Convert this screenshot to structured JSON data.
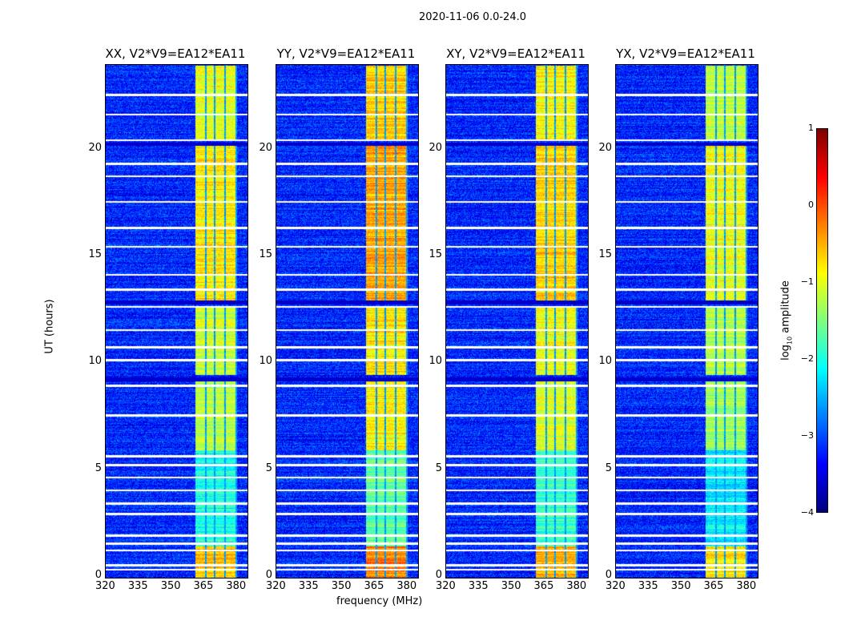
{
  "suptitle": "2020-11-06 0.0-24.0",
  "chart_data": {
    "type": "heatmap",
    "title": "2020-11-06 0.0-24.0",
    "xlabel": "frequency (MHz)",
    "ylabel": "UT (hours)",
    "xlim": [
      320,
      385
    ],
    "ylim": [
      0,
      24
    ],
    "xticks": [
      "320",
      "335",
      "350",
      "365",
      "380"
    ],
    "xtick_values": [
      320,
      335,
      350,
      365,
      380
    ],
    "yticks": [
      "0",
      "5",
      "10",
      "15",
      "20"
    ],
    "ytick_values": [
      0,
      5,
      10,
      15,
      20
    ],
    "colormap": "jet",
    "colorbar": {
      "label_main": "log",
      "label_sub": "10",
      "label_rest": " amplitude",
      "range": [
        -4,
        1
      ],
      "ticks": [
        "1",
        "0",
        "−1",
        "−2",
        "−3",
        "−4"
      ],
      "tick_values": [
        1,
        0,
        -1,
        -2,
        -3,
        -4
      ]
    },
    "background_log_amplitude": -3.2,
    "bright_band_channels_mhz": [
      [
        361,
        365.3
      ],
      [
        366,
        369.3
      ],
      [
        370,
        374.3
      ],
      [
        375,
        379.3
      ]
    ],
    "band_level_by_time": [
      {
        "t": [
          0,
          1.5
        ],
        "level": -0.6
      },
      {
        "t": [
          1.5,
          6.0
        ],
        "level": -2.0
      },
      {
        "t": [
          6.0,
          9.2
        ],
        "level": -1.2
      },
      {
        "t": [
          9.5,
          12.7
        ],
        "level": -1.1
      },
      {
        "t": [
          13.0,
          20.3
        ],
        "level": -0.8
      },
      {
        "t": [
          20.5,
          24.0
        ],
        "level": -1.0
      }
    ],
    "flagged_times_hours": [
      0.4,
      0.6,
      1.3,
      1.6,
      2.0,
      3.0,
      3.5,
      4.1,
      4.7,
      5.3,
      5.7,
      7.6,
      9.0,
      10.2,
      10.8,
      11.6,
      12.7,
      13.5,
      14.2,
      15.5,
      16.4,
      17.6,
      18.8,
      19.4,
      20.5,
      21.7,
      22.6
    ],
    "dark_times_hours": [
      9.3,
      12.9,
      20.3
    ],
    "panels": [
      {
        "title": "XX, V2*V9=EA12*EA11",
        "gain": 0.0
      },
      {
        "title": "YY, V2*V9=EA12*EA11",
        "gain": 0.35
      },
      {
        "title": "XY, V2*V9=EA12*EA11",
        "gain": 0.15
      },
      {
        "title": "YX, V2*V9=EA12*EA11",
        "gain": -0.15
      }
    ]
  }
}
